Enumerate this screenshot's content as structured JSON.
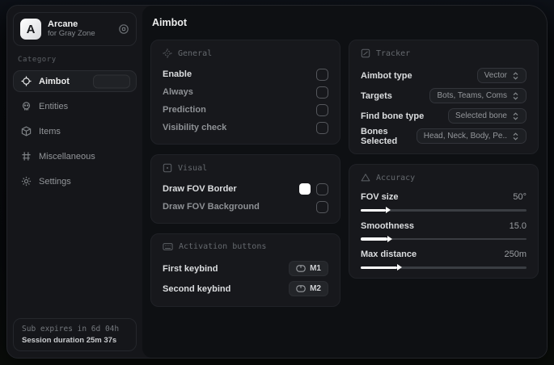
{
  "sidebar": {
    "logo": {
      "initial": "A",
      "title": "Arcane",
      "subtitle": "for Gray Zone"
    },
    "category_label": "Category",
    "items": [
      {
        "label": "Aimbot"
      },
      {
        "label": "Entities"
      },
      {
        "label": "Items"
      },
      {
        "label": "Miscellaneous"
      },
      {
        "label": "Settings"
      }
    ],
    "footer": {
      "line1": "Sub expires in 6d 04h",
      "line2": "Session duration 25m 37s"
    }
  },
  "main": {
    "title": "Aimbot",
    "panels": {
      "general": {
        "title": "General",
        "rows": [
          {
            "label": "Enable",
            "checked": false
          },
          {
            "label": "Always",
            "checked": false
          },
          {
            "label": "Prediction",
            "checked": false
          },
          {
            "label": "Visibility check",
            "checked": false
          }
        ]
      },
      "visual": {
        "title": "Visual",
        "rows": [
          {
            "label": "Draw FOV Border",
            "swatch_color": "#ffffff",
            "checked": false
          },
          {
            "label": "Draw FOV Background",
            "checked": false
          }
        ]
      },
      "activation": {
        "title": "Activation buttons",
        "rows": [
          {
            "label": "First keybind",
            "key": "M1"
          },
          {
            "label": "Second keybind",
            "key": "M2"
          }
        ]
      },
      "tracker": {
        "title": "Tracker",
        "rows": [
          {
            "label": "Aimbot type",
            "value": "Vector"
          },
          {
            "label": "Targets",
            "value": "Bots, Teams, Coms"
          },
          {
            "label": "Find bone type",
            "value": "Selected bone"
          },
          {
            "label": "Bones Selected",
            "value": "Head, Neck, Body, Pe.."
          }
        ]
      },
      "accuracy": {
        "title": "Accuracy",
        "rows": [
          {
            "label": "FOV size",
            "value": "50°",
            "fill_pct": 15
          },
          {
            "label": "Smoothness",
            "value": "15.0",
            "fill_pct": 16
          },
          {
            "label": "Max distance",
            "value": "250m",
            "fill_pct": 22
          }
        ]
      }
    }
  },
  "colors": {
    "accent_white": "#ffffff",
    "panel_bg": "#17181c",
    "main_bg": "#0e1013",
    "frame_bg": "#15161a"
  }
}
